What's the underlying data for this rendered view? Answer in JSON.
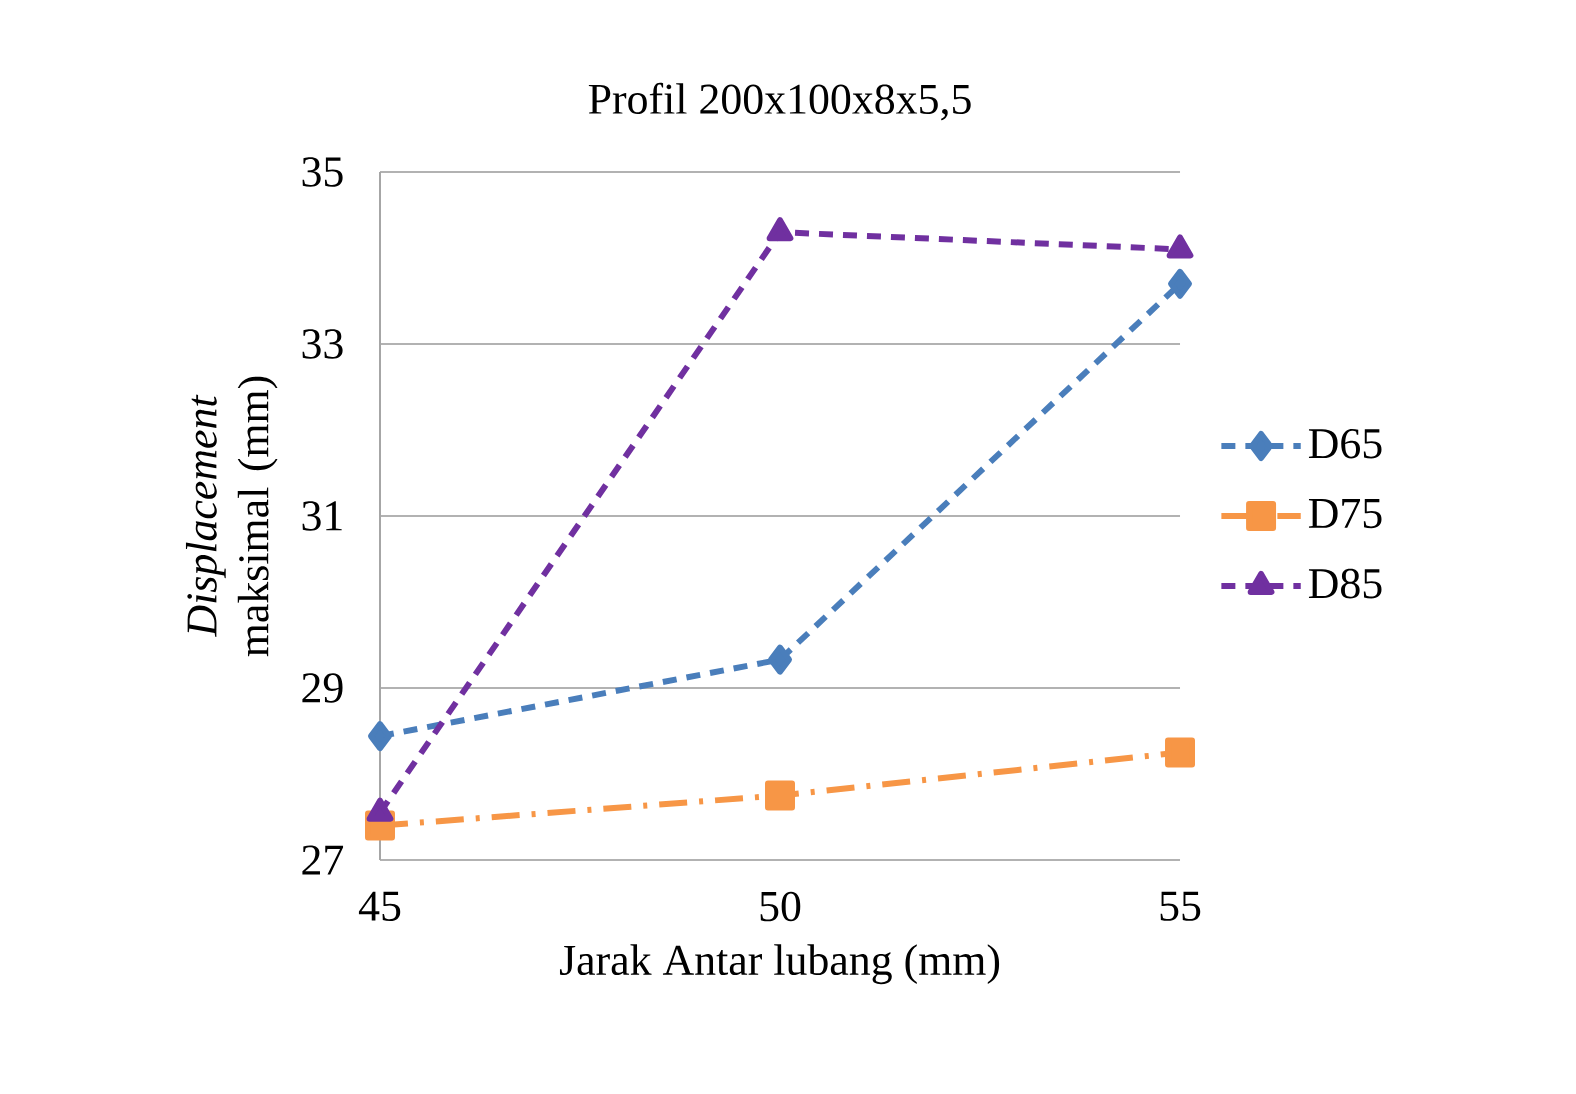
{
  "chart_data": {
    "type": "line",
    "title": "Profil 200x100x8x5,5",
    "xlabel": "Jarak Antar lubang (mm)",
    "ylabel": "*Displacement* maksimal (mm)",
    "x": [
      45,
      50,
      55
    ],
    "series": [
      {
        "name": "D65",
        "color": "#4a7ebb",
        "values": [
          28.44,
          29.33,
          33.7
        ],
        "marker": "diamond",
        "line_style": "dashed"
      },
      {
        "name": "D75",
        "color": "#f79646",
        "values": [
          27.4,
          27.75,
          28.25
        ],
        "marker": "square",
        "line_style": "dashdot"
      },
      {
        "name": "D85",
        "color": "#7030a0",
        "values": [
          27.55,
          34.3,
          34.1
        ],
        "marker": "triangle",
        "line_style": "dashed"
      }
    ],
    "xlim": [
      45,
      55
    ],
    "xticks": [
      45,
      50,
      55
    ],
    "ylim": [
      27,
      35
    ],
    "yticks": [
      27,
      29,
      31,
      33,
      35
    ],
    "grid": "y",
    "legend": "right"
  }
}
